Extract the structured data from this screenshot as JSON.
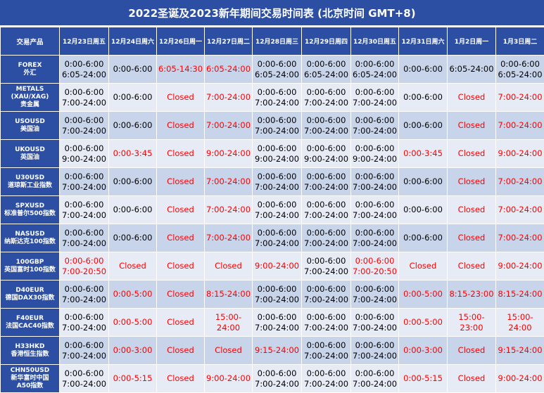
{
  "title": "2022圣诞及2023新年期间交易时间表 (北京时间 GMT+8)",
  "colors": {
    "header_bg": "#2c4fa3",
    "row_odd": "#c7d4ea",
    "row_even": "#e6ebf5",
    "closed_red": "#ff0000"
  },
  "table": {
    "corner": "交易产品",
    "columns": [
      "12月23日周五",
      "12月24日周六",
      "12月26日周一",
      "12月27日周二",
      "12月28日周三",
      "12月29日周四",
      "12月30日周五",
      "12月31日周六",
      "1月2日周一",
      "1月3日周二"
    ],
    "rows": [
      {
        "product": [
          "FOREX",
          "外汇"
        ],
        "cells": [
          {
            "lines": [
              "0:00-6:00",
              "6:05-24:00"
            ],
            "red": false
          },
          {
            "lines": [
              "0:00-6:00"
            ],
            "red": false
          },
          {
            "lines": [
              "6:05-14:30"
            ],
            "red": true
          },
          {
            "lines": [
              "6:05-24:00"
            ],
            "red": true
          },
          {
            "lines": [
              "0:00-6:00",
              "6:05-24:00"
            ],
            "red": false
          },
          {
            "lines": [
              "0:00-6:00",
              "6:05-24:00"
            ],
            "red": false
          },
          {
            "lines": [
              "0:00-6:00",
              "6:05-24:00"
            ],
            "red": false
          },
          {
            "lines": [
              "0:00-6:00"
            ],
            "red": false
          },
          {
            "lines": [
              "6:05-24:00"
            ],
            "red": false
          },
          {
            "lines": [
              "0:00-6:00",
              "6:05-24:00"
            ],
            "red": false
          }
        ]
      },
      {
        "product": [
          "METALS",
          "(XAU/XAG)",
          "贵金属"
        ],
        "cells": [
          {
            "lines": [
              "0:00-6:00",
              "7:00-24:00"
            ],
            "red": false
          },
          {
            "lines": [
              "0:00-6:00"
            ],
            "red": false
          },
          {
            "lines": [
              "Closed"
            ],
            "red": true
          },
          {
            "lines": [
              "7:00-24:00"
            ],
            "red": true
          },
          {
            "lines": [
              "0:00-6:00",
              "7:00-24:00"
            ],
            "red": false
          },
          {
            "lines": [
              "0:00-6:00",
              "7:00-24:00"
            ],
            "red": false
          },
          {
            "lines": [
              "0:00-6:00",
              "7:00-24:00"
            ],
            "red": false
          },
          {
            "lines": [
              "0:00-6:00"
            ],
            "red": false
          },
          {
            "lines": [
              "Closed"
            ],
            "red": true
          },
          {
            "lines": [
              "7:00-24:00"
            ],
            "red": true
          }
        ]
      },
      {
        "product": [
          "USOUSD",
          "美国油"
        ],
        "cells": [
          {
            "lines": [
              "0:00-6:00",
              "7:00-24:00"
            ],
            "red": false
          },
          {
            "lines": [
              "0:00-6:00"
            ],
            "red": false
          },
          {
            "lines": [
              "Closed"
            ],
            "red": true
          },
          {
            "lines": [
              "7:00-24:00"
            ],
            "red": true
          },
          {
            "lines": [
              "0:00-6:00",
              "7:00-24:00"
            ],
            "red": false
          },
          {
            "lines": [
              "0:00-6:00",
              "7:00-24:00"
            ],
            "red": false
          },
          {
            "lines": [
              "0:00-6:00",
              "7:00-24:00"
            ],
            "red": false
          },
          {
            "lines": [
              "0:00-6:00"
            ],
            "red": false
          },
          {
            "lines": [
              "Closed"
            ],
            "red": true
          },
          {
            "lines": [
              "7:00-24:00"
            ],
            "red": true
          }
        ]
      },
      {
        "product": [
          "UKOUSD",
          "英国油"
        ],
        "cells": [
          {
            "lines": [
              "0:00-6:00",
              "9:00-24:00"
            ],
            "red": false
          },
          {
            "lines": [
              "0:00-3:45"
            ],
            "red": true
          },
          {
            "lines": [
              "Closed"
            ],
            "red": true
          },
          {
            "lines": [
              "9:00-24:00"
            ],
            "red": true
          },
          {
            "lines": [
              "0:00-6:00",
              "9:00-24:00"
            ],
            "red": false
          },
          {
            "lines": [
              "0:00-6:00",
              "9:00-24:00"
            ],
            "red": false
          },
          {
            "lines": [
              "0:00-6:00",
              "9:00-24:00"
            ],
            "red": false
          },
          {
            "lines": [
              "0:00-3:45"
            ],
            "red": true
          },
          {
            "lines": [
              "Closed"
            ],
            "red": true
          },
          {
            "lines": [
              "9:00-24:00"
            ],
            "red": true
          }
        ]
      },
      {
        "product": [
          "U30USD",
          "道琼斯工业指数"
        ],
        "cells": [
          {
            "lines": [
              "0:00-6:00",
              "7:00-24:00"
            ],
            "red": false
          },
          {
            "lines": [
              "0:00-6:00"
            ],
            "red": false
          },
          {
            "lines": [
              "Closed"
            ],
            "red": true
          },
          {
            "lines": [
              "7:00-24:00"
            ],
            "red": true
          },
          {
            "lines": [
              "0:00-6:00",
              "7:00-24:00"
            ],
            "red": false
          },
          {
            "lines": [
              "0:00-6:00",
              "7:00-24:00"
            ],
            "red": false
          },
          {
            "lines": [
              "0:00-6:00",
              "7:00-24:00"
            ],
            "red": false
          },
          {
            "lines": [
              "0:00-6:00"
            ],
            "red": false
          },
          {
            "lines": [
              "Closed"
            ],
            "red": true
          },
          {
            "lines": [
              "7:00-24:00"
            ],
            "red": true
          }
        ]
      },
      {
        "product": [
          "SPXUSD",
          "标准普尔500指数"
        ],
        "cells": [
          {
            "lines": [
              "0:00-6:00",
              "7:00-24:00"
            ],
            "red": false
          },
          {
            "lines": [
              "0:00-6:00"
            ],
            "red": false
          },
          {
            "lines": [
              "Closed"
            ],
            "red": true
          },
          {
            "lines": [
              "7:00-24:00"
            ],
            "red": true
          },
          {
            "lines": [
              "0:00-6:00",
              "7:00-24:00"
            ],
            "red": false
          },
          {
            "lines": [
              "0:00-6:00",
              "7:00-24:00"
            ],
            "red": false
          },
          {
            "lines": [
              "0:00-6:00",
              "7:00-24:00"
            ],
            "red": false
          },
          {
            "lines": [
              "0:00-6:00"
            ],
            "red": false
          },
          {
            "lines": [
              "Closed"
            ],
            "red": true
          },
          {
            "lines": [
              "7:00-24:00"
            ],
            "red": true
          }
        ]
      },
      {
        "product": [
          "NASUSD",
          "纳斯达克100指数"
        ],
        "cells": [
          {
            "lines": [
              "0:00-6:00",
              "7:00-24:00"
            ],
            "red": false
          },
          {
            "lines": [
              "0:00-6:00"
            ],
            "red": false
          },
          {
            "lines": [
              "Closed"
            ],
            "red": true
          },
          {
            "lines": [
              "7:00-24:00"
            ],
            "red": true
          },
          {
            "lines": [
              "0:00-6:00",
              "7:00-24:00"
            ],
            "red": false
          },
          {
            "lines": [
              "0:00-6:00",
              "7:00-24:00"
            ],
            "red": false
          },
          {
            "lines": [
              "0:00-6:00",
              "7:00-24:00"
            ],
            "red": false
          },
          {
            "lines": [
              "0:00-6:00"
            ],
            "red": false
          },
          {
            "lines": [
              "Closed"
            ],
            "red": true
          },
          {
            "lines": [
              "7:00-24:00"
            ],
            "red": true
          }
        ]
      },
      {
        "product": [
          "100GBP",
          "英国富时100指数"
        ],
        "cells": [
          {
            "lines": [
              "0:00-6:00",
              "7:00-20:50"
            ],
            "red": true
          },
          {
            "lines": [
              "Closed"
            ],
            "red": true
          },
          {
            "lines": [
              "Closed"
            ],
            "red": true
          },
          {
            "lines": [
              "Closed"
            ],
            "red": true
          },
          {
            "lines": [
              "9:00-24:00"
            ],
            "red": true
          },
          {
            "lines": [
              "0:00-6:00",
              "7:00-24:00"
            ],
            "red": false
          },
          {
            "lines": [
              "0:00-6:00",
              "7:00-20:50"
            ],
            "red": true
          },
          {
            "lines": [
              "Closed"
            ],
            "red": true
          },
          {
            "lines": [
              "Closed"
            ],
            "red": true
          },
          {
            "lines": [
              "9:00-24:00"
            ],
            "red": true
          }
        ]
      },
      {
        "product": [
          "D40EUR",
          "德国DAX30指数"
        ],
        "cells": [
          {
            "lines": [
              "0:00-6:00",
              "7:00-24:00"
            ],
            "red": false
          },
          {
            "lines": [
              "0:00-5:00"
            ],
            "red": true
          },
          {
            "lines": [
              "Closed"
            ],
            "red": true
          },
          {
            "lines": [
              "8:15-24:00"
            ],
            "red": true
          },
          {
            "lines": [
              "0:00-6:00",
              "7:00-24:00"
            ],
            "red": false
          },
          {
            "lines": [
              "0:00-6:00",
              "7:00-24:00"
            ],
            "red": false
          },
          {
            "lines": [
              "0:00-6:00",
              "7:00-24:00"
            ],
            "red": false
          },
          {
            "lines": [
              "0:00-5:00"
            ],
            "red": true
          },
          {
            "lines": [
              "8:15-23:00"
            ],
            "red": true
          },
          {
            "lines": [
              "8:15-24:00"
            ],
            "red": true
          }
        ]
      },
      {
        "product": [
          "F40EUR",
          "法国CAC40指数"
        ],
        "cells": [
          {
            "lines": [
              "0:00-6:00",
              "7:00-24:00"
            ],
            "red": false
          },
          {
            "lines": [
              "0:00-5:00"
            ],
            "red": true
          },
          {
            "lines": [
              "Closed"
            ],
            "red": true
          },
          {
            "lines": [
              "15:00-",
              "24:00"
            ],
            "red": true
          },
          {
            "lines": [
              "0:00-6:00",
              "7:00-24:00"
            ],
            "red": false
          },
          {
            "lines": [
              "0:00-6:00",
              "7:00-24:00"
            ],
            "red": false
          },
          {
            "lines": [
              "0:00-6:00",
              "7:00-24:00"
            ],
            "red": false
          },
          {
            "lines": [
              "0:00-5:00"
            ],
            "red": true
          },
          {
            "lines": [
              "15:00-",
              "23:00"
            ],
            "red": true
          },
          {
            "lines": [
              "15:00-",
              "24:00"
            ],
            "red": true
          }
        ]
      },
      {
        "product": [
          "H33HKD",
          "香港恒生指数"
        ],
        "cells": [
          {
            "lines": [
              "0:00-6:00",
              "7:00-24:00"
            ],
            "red": false
          },
          {
            "lines": [
              "0:00-3:00"
            ],
            "red": true
          },
          {
            "lines": [
              "Closed"
            ],
            "red": true
          },
          {
            "lines": [
              "Closed"
            ],
            "red": true
          },
          {
            "lines": [
              "9:15-24:00"
            ],
            "red": true
          },
          {
            "lines": [
              "0:00-6:00",
              "7:00-24:00"
            ],
            "red": false
          },
          {
            "lines": [
              "0:00-6:00",
              "7:00-24:00"
            ],
            "red": false
          },
          {
            "lines": [
              "0:00-3:00"
            ],
            "red": true
          },
          {
            "lines": [
              "Closed"
            ],
            "red": true
          },
          {
            "lines": [
              "9:15-24:00"
            ],
            "red": true
          }
        ]
      },
      {
        "product": [
          "CHN50USD",
          "新华富时中国",
          "A50指数"
        ],
        "cells": [
          {
            "lines": [
              "0:00-6:00",
              "7:00-24:00"
            ],
            "red": false
          },
          {
            "lines": [
              "0:00-5:15"
            ],
            "red": true
          },
          {
            "lines": [
              "Closed"
            ],
            "red": true
          },
          {
            "lines": [
              "9:00-24:00"
            ],
            "red": true
          },
          {
            "lines": [
              "0:00-6:00",
              "7:00-24:00"
            ],
            "red": false
          },
          {
            "lines": [
              "0:00-6:00",
              "7:00-24:00"
            ],
            "red": false
          },
          {
            "lines": [
              "0:00-6:00",
              "7:00-24:00"
            ],
            "red": false
          },
          {
            "lines": [
              "0:00-5:15"
            ],
            "red": true
          },
          {
            "lines": [
              "Closed"
            ],
            "red": true
          },
          {
            "lines": [
              "9:00-24:00"
            ],
            "red": true
          }
        ]
      }
    ]
  }
}
